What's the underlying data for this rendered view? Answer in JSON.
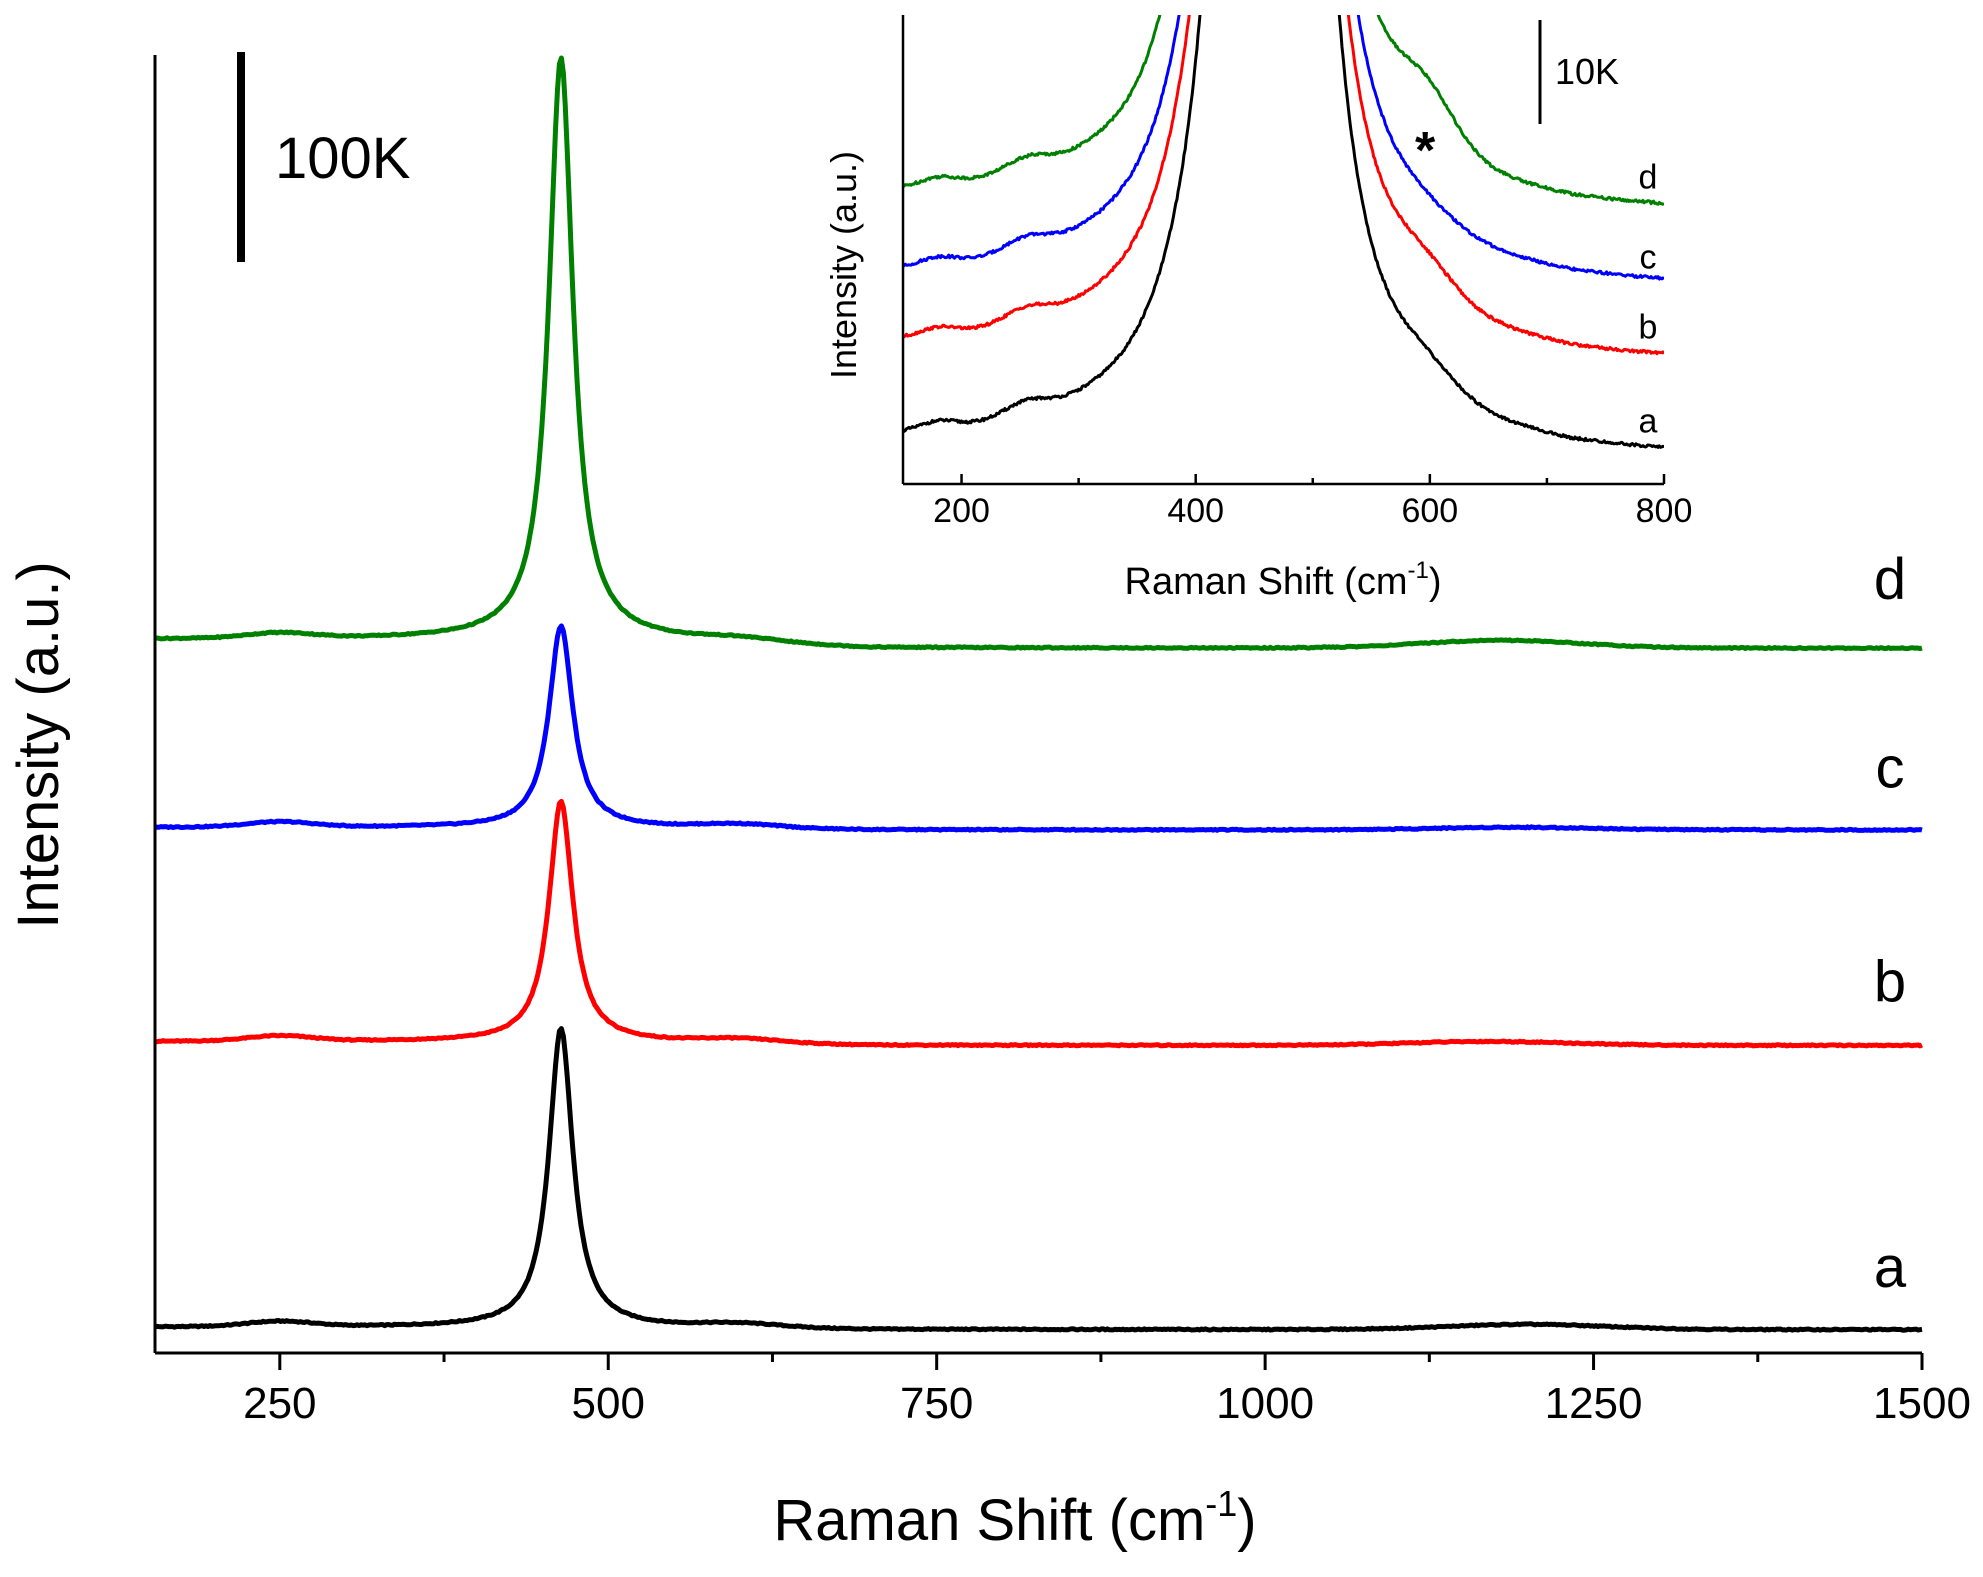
{
  "chart_data": [
    {
      "type": "line",
      "title": "",
      "xlabel": "Raman Shift (cm",
      "xlabel_sup": "-1",
      "xlabel_close": ")",
      "ylabel": "Intensity (a.u.)",
      "xlim": [
        155,
        1500
      ],
      "ylim": [
        0,
        1000
      ],
      "x_ticks": [
        250,
        500,
        750,
        1000,
        1250,
        1500
      ],
      "x_tick_labels": [
        "250",
        "500",
        "750",
        "1000",
        "1250",
        "1500"
      ],
      "x_minor_ticks": [
        375,
        625,
        875,
        1125,
        1375
      ],
      "y_ticks_shown": false,
      "scale_bar_label": "100K",
      "peak_position": 464,
      "series": [
        {
          "name": "a",
          "color": "#000000",
          "offset": 20,
          "peak_height": 230,
          "bump_height": 4,
          "bump_center": 1200,
          "drift": -2
        },
        {
          "name": "b",
          "color": "#ff0000",
          "offset": 240,
          "peak_height": 185,
          "bump_height": 3,
          "bump_center": 1170,
          "drift": -3
        },
        {
          "name": "c",
          "color": "#0000ff",
          "offset": 405,
          "peak_height": 155,
          "bump_height": 2,
          "bump_center": 1190,
          "drift": -2
        },
        {
          "name": "d",
          "color": "#008000",
          "offset": 550,
          "peak_height": 448,
          "bump_height": 6,
          "bump_center": 1180,
          "drift": -7
        }
      ]
    },
    {
      "type": "line",
      "title": "",
      "xlabel": "Raman Shift (cm",
      "xlabel_sup": "-1",
      "xlabel_close": ")",
      "ylabel": "Intensity (a.u.)",
      "xlim": [
        150,
        800
      ],
      "ylim": [
        0,
        100
      ],
      "x_ticks": [
        200,
        400,
        600,
        800
      ],
      "x_tick_labels": [
        "200",
        "400",
        "600",
        "800"
      ],
      "x_minor_ticks": [
        300,
        500,
        700
      ],
      "y_ticks_shown": false,
      "scale_bar_label": "10K",
      "annotation": "*",
      "annotation_x": 596,
      "peak_position": 464,
      "series": [
        {
          "name": "a",
          "color": "#000000",
          "offset": 8,
          "shoulder": 6,
          "bump600": 4,
          "end_drop": 3
        },
        {
          "name": "b",
          "color": "#ff0000",
          "offset": 28,
          "shoulder": 9,
          "bump600": 5,
          "end_drop": 3
        },
        {
          "name": "c",
          "color": "#0000ff",
          "offset": 43,
          "shoulder": 9,
          "bump600": 2,
          "end_drop": 2
        },
        {
          "name": "d",
          "color": "#008000",
          "offset": 60,
          "shoulder": 18,
          "bump600": 10,
          "end_drop": 3
        }
      ]
    }
  ]
}
